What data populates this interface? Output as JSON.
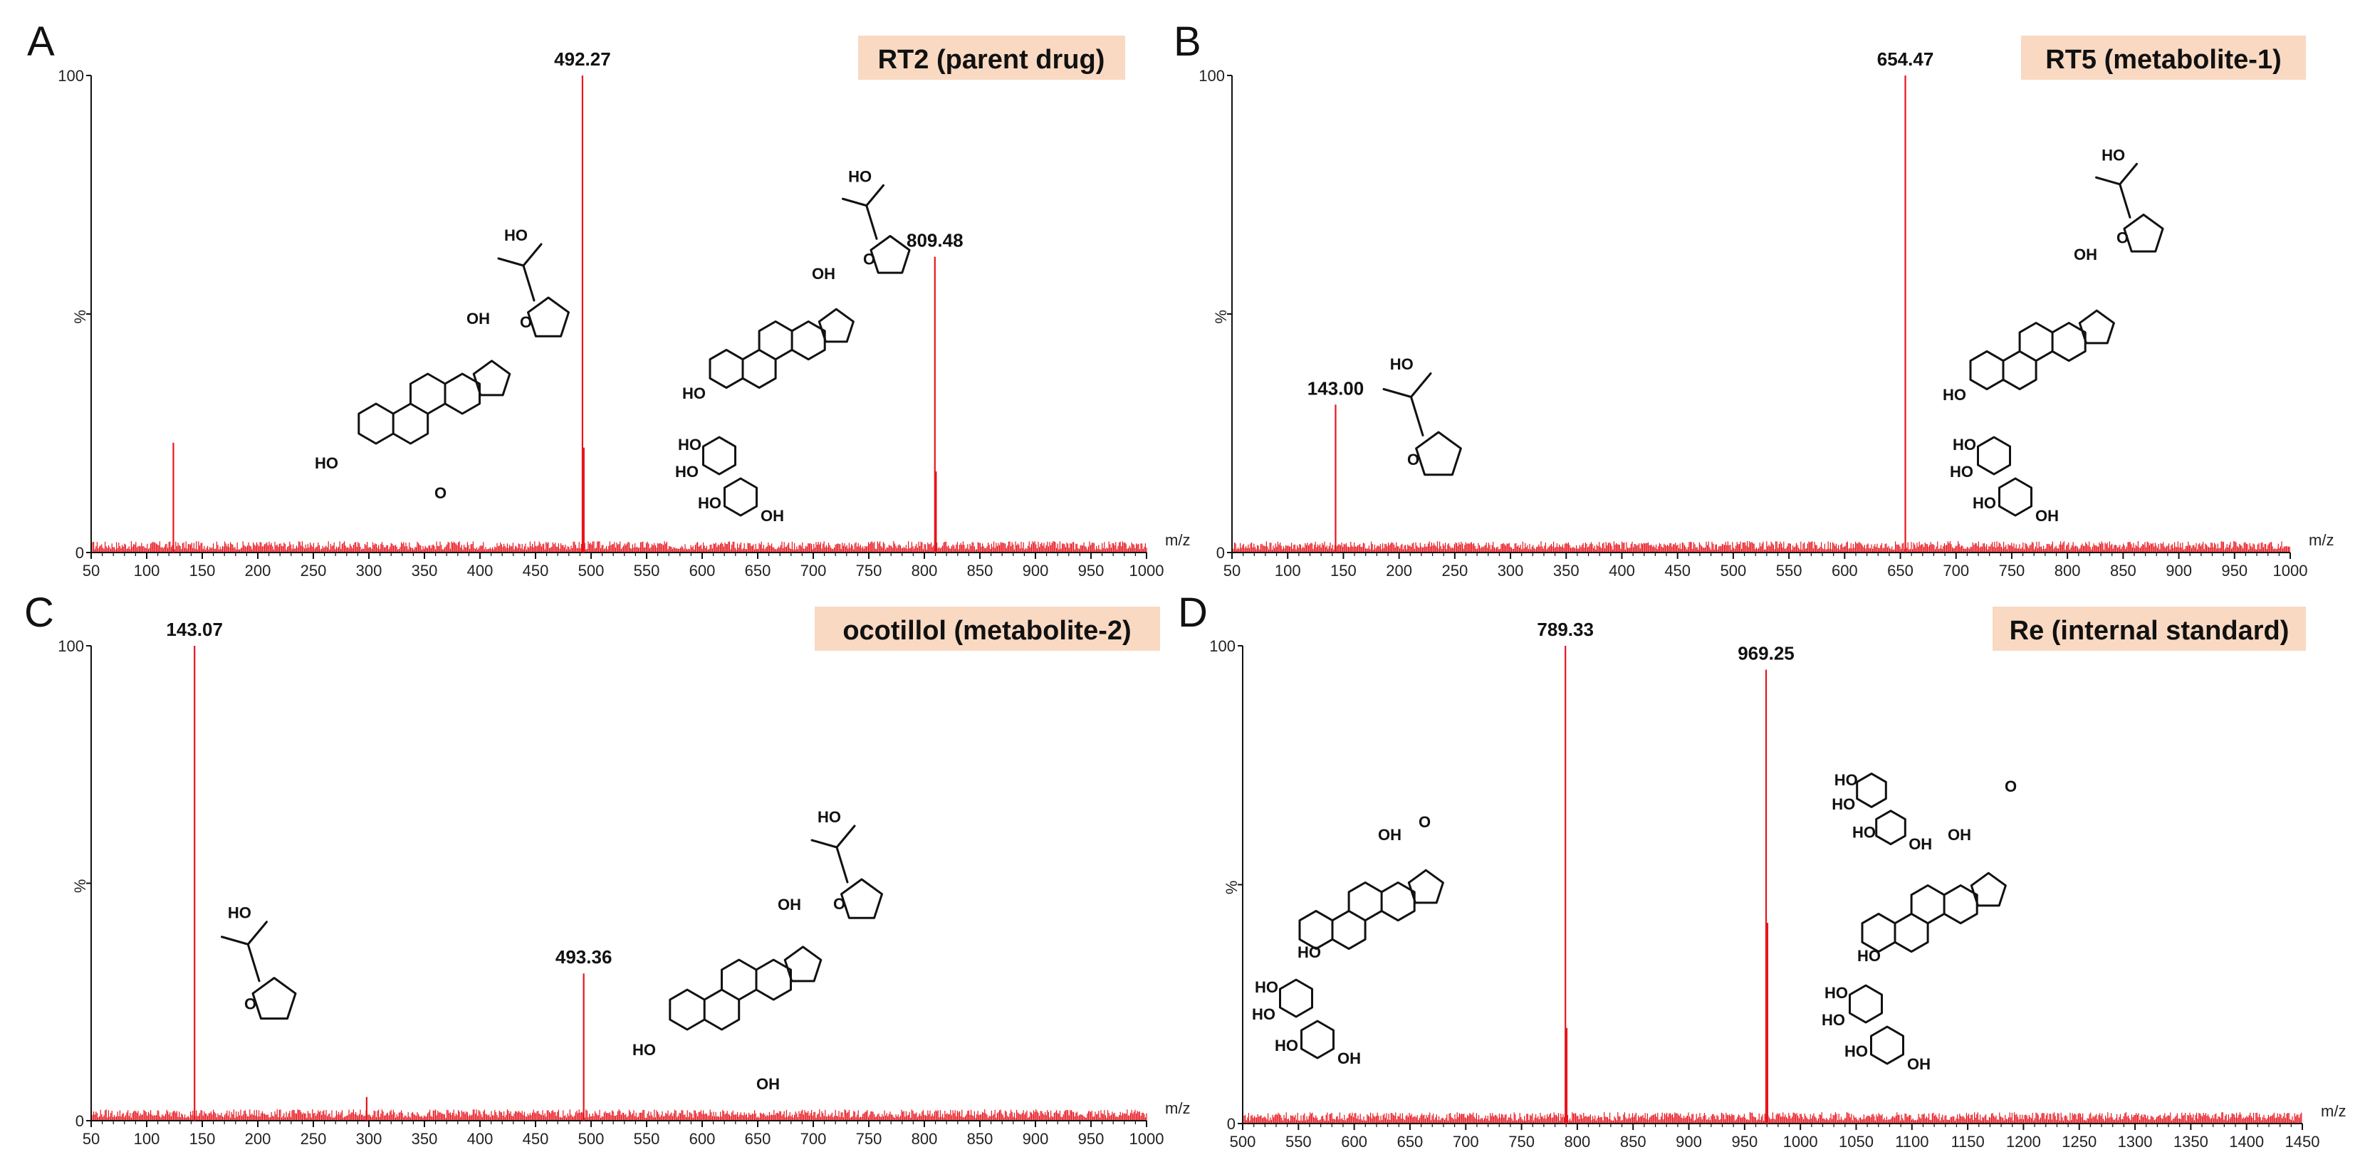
{
  "chart_data": [
    {
      "panel": "A",
      "type": "bar",
      "title": "RT2 (parent drug)",
      "title_bg": "#f9d9c2",
      "xlabel": "m/z",
      "ylabel": "%",
      "xlim": [
        50,
        1000
      ],
      "ylim": [
        0,
        100
      ],
      "xticks": [
        50,
        100,
        150,
        200,
        250,
        300,
        350,
        400,
        450,
        500,
        550,
        600,
        650,
        700,
        750,
        800,
        850,
        900,
        950,
        1000
      ],
      "yticks": [
        "0",
        "%",
        "100"
      ],
      "peaks": [
        {
          "x": 492.27,
          "y": 100,
          "label": "492.27"
        },
        {
          "x": 809.48,
          "y": 62,
          "label": "809.48"
        },
        {
          "x": 124,
          "y": 23,
          "label": ""
        },
        {
          "x": 493.5,
          "y": 22,
          "label": ""
        },
        {
          "x": 810.5,
          "y": 17,
          "label": ""
        }
      ],
      "peak_color": "#e8141c"
    },
    {
      "panel": "B",
      "type": "bar",
      "title": "RT5 (metabolite-1)",
      "title_bg": "#f9d9c2",
      "xlabel": "m/z",
      "ylabel": "%",
      "xlim": [
        50,
        1000
      ],
      "ylim": [
        0,
        100
      ],
      "xticks": [
        50,
        100,
        150,
        200,
        250,
        300,
        350,
        400,
        450,
        500,
        550,
        600,
        650,
        700,
        750,
        800,
        850,
        900,
        950,
        1000
      ],
      "yticks": [
        "0",
        "%",
        "100"
      ],
      "peaks": [
        {
          "x": 654.47,
          "y": 100,
          "label": "654.47"
        },
        {
          "x": 143.0,
          "y": 31,
          "label": "143.00"
        }
      ],
      "peak_color": "#e8141c"
    },
    {
      "panel": "C",
      "type": "bar",
      "title": "ocotillol (metabolite-2)",
      "title_bg": "#f9d9c2",
      "xlabel": "m/z",
      "ylabel": "%",
      "xlim": [
        50,
        1000
      ],
      "ylim": [
        0,
        100
      ],
      "xticks": [
        50,
        100,
        150,
        200,
        250,
        300,
        350,
        400,
        450,
        500,
        550,
        600,
        650,
        700,
        750,
        800,
        850,
        900,
        950,
        1000
      ],
      "yticks": [
        "0",
        "%",
        "100"
      ],
      "peaks": [
        {
          "x": 143.07,
          "y": 100,
          "label": "143.07"
        },
        {
          "x": 493.36,
          "y": 31,
          "label": "493.36"
        },
        {
          "x": 298,
          "y": 5,
          "label": ""
        }
      ],
      "peak_color": "#e8141c"
    },
    {
      "panel": "D",
      "type": "bar",
      "title": "Re (internal standard)",
      "title_bg": "#f9d9c2",
      "xlabel": "m/z",
      "ylabel": "%",
      "xlim": [
        500,
        1450
      ],
      "ylim": [
        0,
        100
      ],
      "xticks": [
        500,
        550,
        600,
        650,
        700,
        750,
        800,
        850,
        900,
        950,
        1000,
        1050,
        1100,
        1150,
        1200,
        1250,
        1300,
        1350,
        1400,
        1450
      ],
      "yticks": [
        "0",
        "%",
        "100"
      ],
      "peaks": [
        {
          "x": 789.33,
          "y": 100,
          "label": "789.33"
        },
        {
          "x": 969.25,
          "y": 95,
          "label": "969.25"
        },
        {
          "x": 790.5,
          "y": 20,
          "label": ""
        },
        {
          "x": 970.5,
          "y": 42,
          "label": ""
        }
      ],
      "peak_color": "#e8141c"
    }
  ],
  "structures": {
    "atoms_oh": "OH",
    "atoms_ho": "HO",
    "atoms_o": "O"
  }
}
